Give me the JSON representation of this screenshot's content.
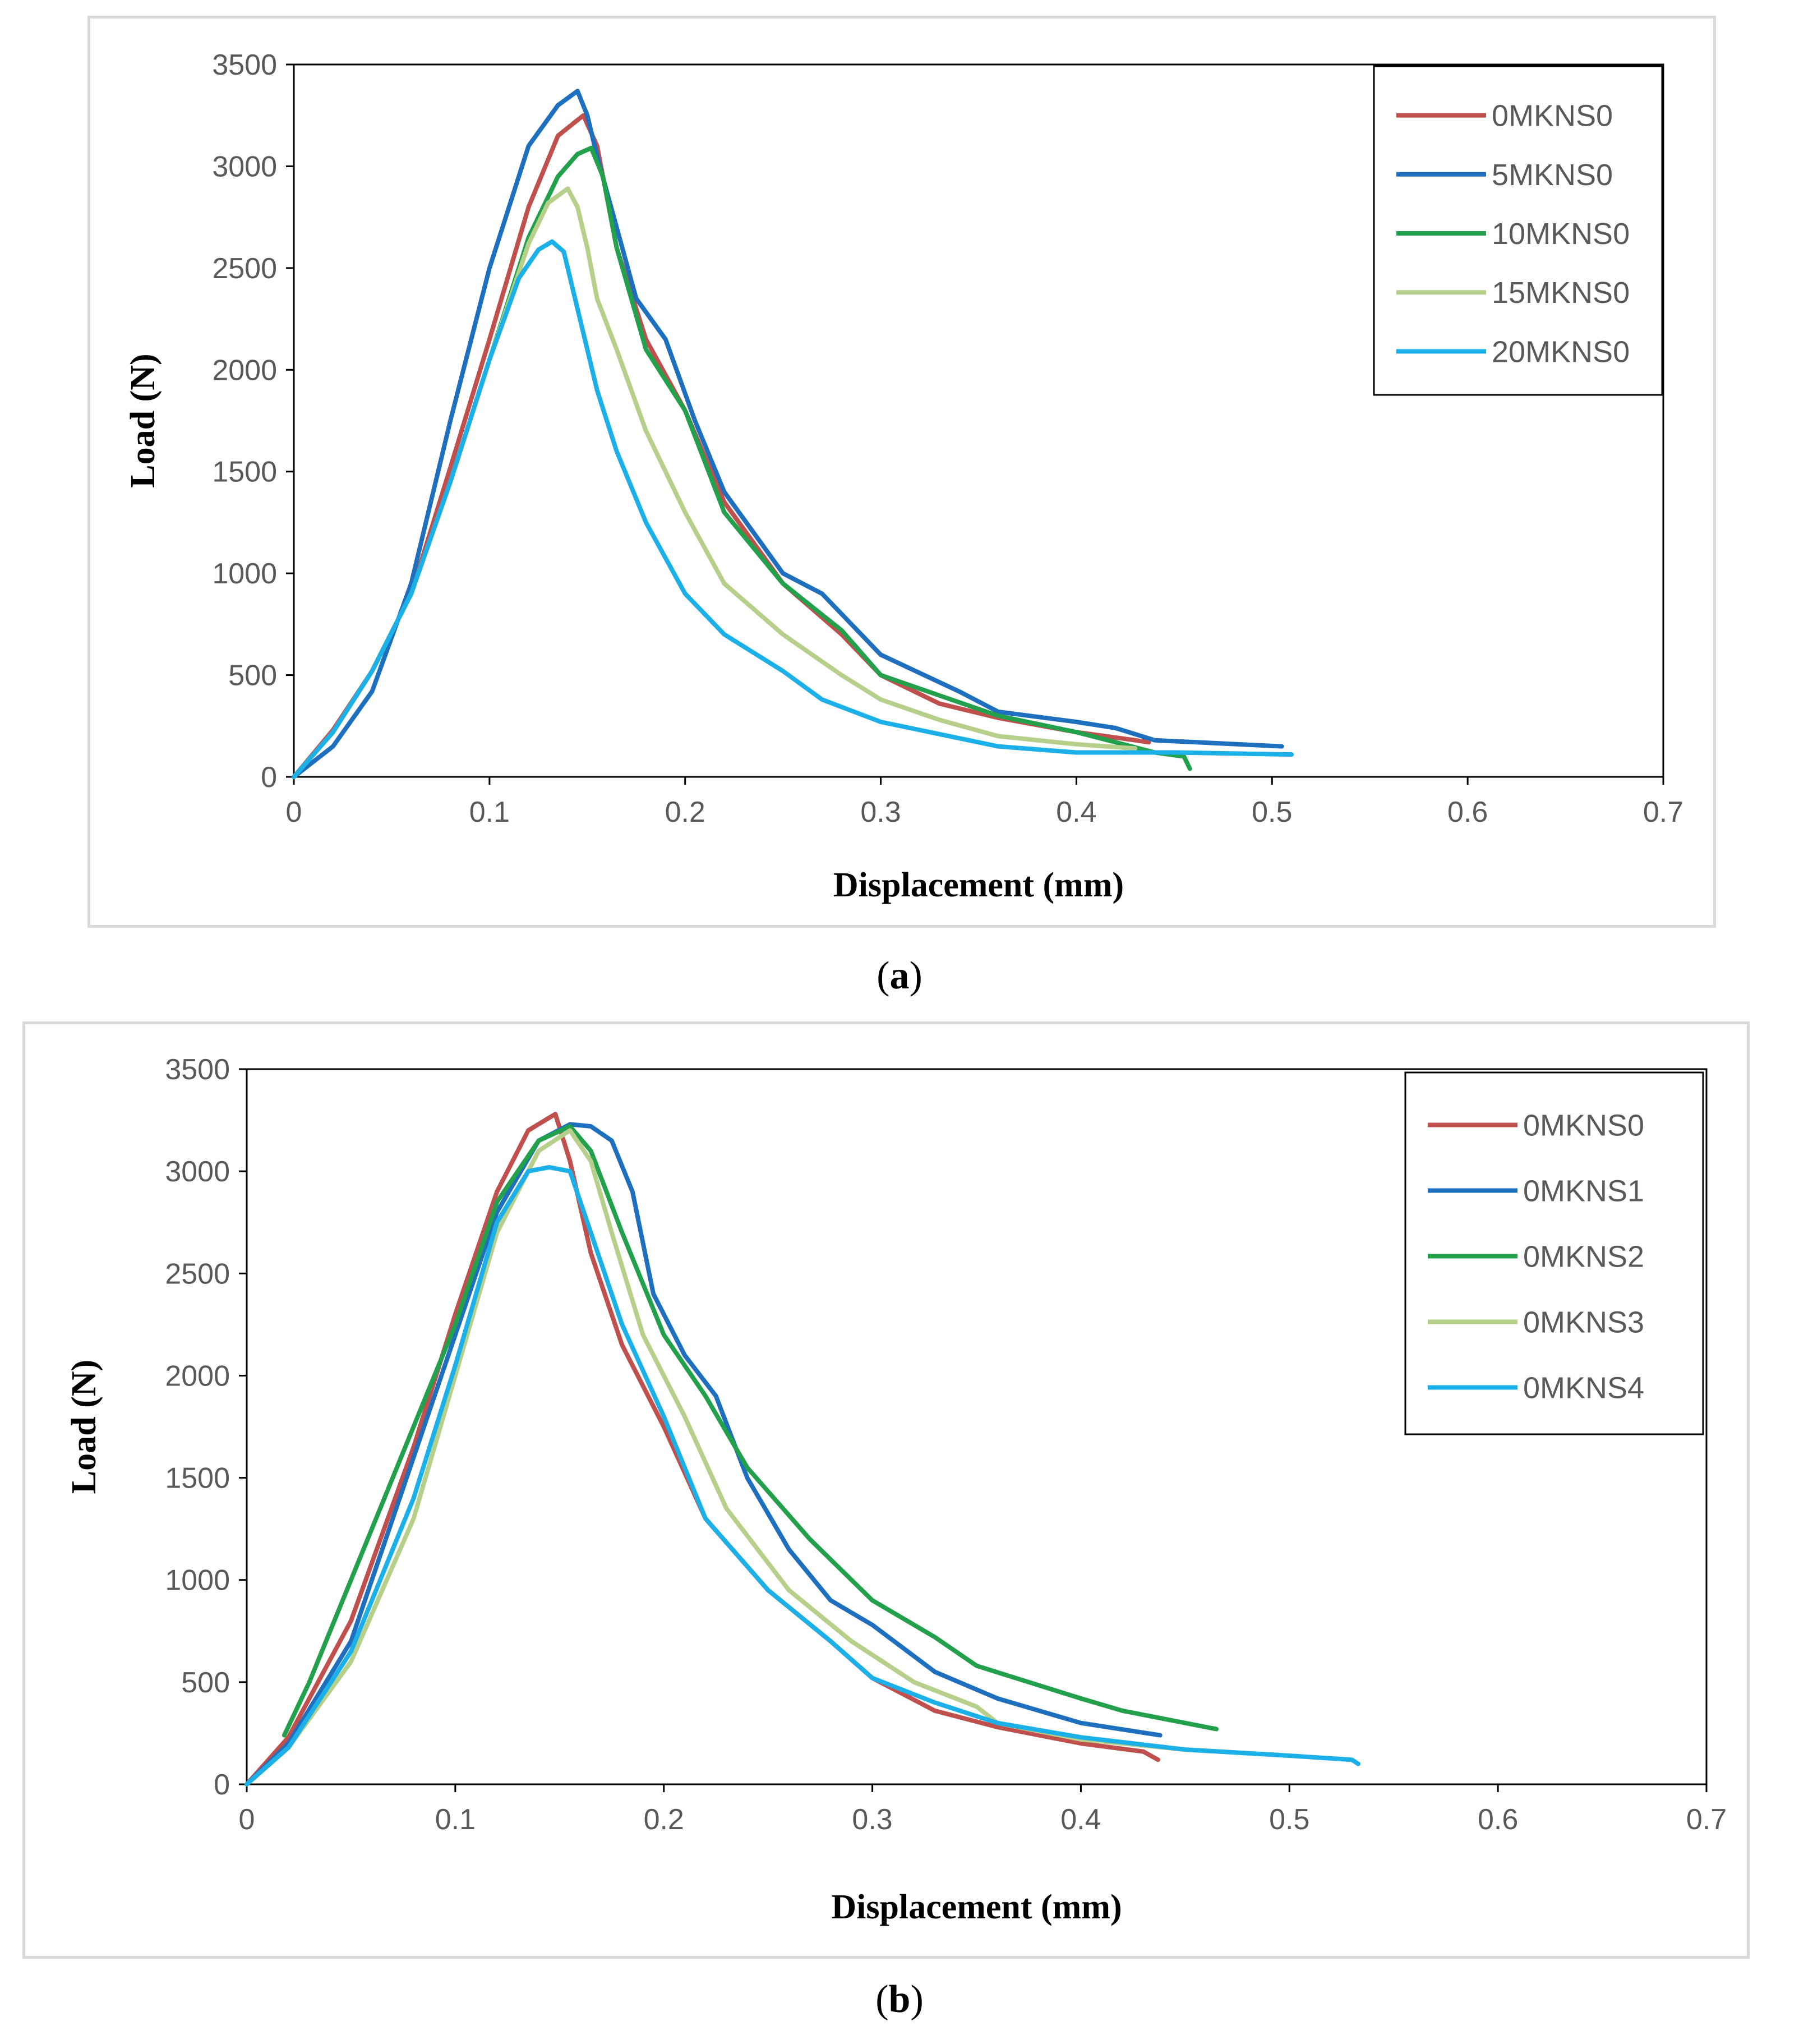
{
  "chart_data": [
    {
      "type": "line",
      "id": "a",
      "caption_letter": "a",
      "xlabel": "Displacement (mm)",
      "ylabel": "Load (N)",
      "xlim": [
        0,
        0.7
      ],
      "ylim": [
        0,
        3500
      ],
      "xticks": [
        "0",
        "0.1",
        "0.2",
        "0.3",
        "0.4",
        "0.5",
        "0.6",
        "0.7"
      ],
      "yticks": [
        "0",
        "500",
        "1000",
        "1500",
        "2000",
        "2500",
        "3000",
        "3500"
      ],
      "grid": false,
      "legend_position": "top-right",
      "series": [
        {
          "name": "0MKNS0",
          "color": "#c0504d",
          "x": [
            0,
            0.02,
            0.04,
            0.06,
            0.08,
            0.1,
            0.12,
            0.135,
            0.148,
            0.155,
            0.165,
            0.18,
            0.2,
            0.22,
            0.25,
            0.28,
            0.3,
            0.33,
            0.36,
            0.4,
            0.43,
            0.437
          ],
          "y": [
            0,
            230,
            520,
            900,
            1520,
            2150,
            2800,
            3150,
            3250,
            3100,
            2600,
            2150,
            1800,
            1350,
            950,
            700,
            500,
            360,
            290,
            220,
            180,
            170
          ]
        },
        {
          "name": "5MKNS0",
          "color": "#1f6fbf",
          "x": [
            0,
            0.02,
            0.04,
            0.06,
            0.08,
            0.1,
            0.12,
            0.135,
            0.145,
            0.15,
            0.155,
            0.165,
            0.175,
            0.19,
            0.205,
            0.22,
            0.25,
            0.27,
            0.3,
            0.34,
            0.36,
            0.4,
            0.42,
            0.44,
            0.505
          ],
          "y": [
            0,
            150,
            420,
            950,
            1750,
            2500,
            3100,
            3300,
            3370,
            3250,
            3050,
            2700,
            2350,
            2150,
            1750,
            1400,
            1000,
            900,
            600,
            420,
            320,
            270,
            240,
            180,
            150
          ]
        },
        {
          "name": "10MKNS0",
          "color": "#22a04b",
          "x": [
            0,
            0.02,
            0.04,
            0.06,
            0.08,
            0.1,
            0.12,
            0.135,
            0.145,
            0.152,
            0.158,
            0.165,
            0.18,
            0.2,
            0.22,
            0.25,
            0.28,
            0.3,
            0.33,
            0.36,
            0.4,
            0.42,
            0.44,
            0.455,
            0.458
          ],
          "y": [
            0,
            220,
            520,
            900,
            1450,
            2050,
            2650,
            2950,
            3060,
            3090,
            2950,
            2600,
            2100,
            1800,
            1300,
            950,
            720,
            500,
            400,
            300,
            220,
            170,
            120,
            100,
            40
          ]
        },
        {
          "name": "15MKNS0",
          "color": "#b6cf8a",
          "x": [
            0,
            0.02,
            0.04,
            0.06,
            0.08,
            0.1,
            0.12,
            0.13,
            0.14,
            0.145,
            0.15,
            0.155,
            0.165,
            0.18,
            0.2,
            0.22,
            0.25,
            0.28,
            0.3,
            0.33,
            0.36,
            0.4,
            0.43
          ],
          "y": [
            0,
            220,
            520,
            900,
            1450,
            2050,
            2620,
            2820,
            2890,
            2800,
            2600,
            2350,
            2100,
            1700,
            1300,
            950,
            700,
            500,
            380,
            280,
            200,
            160,
            140
          ]
        },
        {
          "name": "20MKNS0",
          "color": "#1bb0e8",
          "x": [
            0,
            0.02,
            0.04,
            0.06,
            0.08,
            0.1,
            0.115,
            0.125,
            0.132,
            0.138,
            0.145,
            0.155,
            0.165,
            0.18,
            0.2,
            0.22,
            0.25,
            0.27,
            0.3,
            0.33,
            0.36,
            0.4,
            0.45,
            0.51
          ],
          "y": [
            0,
            220,
            520,
            900,
            1450,
            2050,
            2450,
            2590,
            2630,
            2580,
            2300,
            1900,
            1600,
            1250,
            900,
            700,
            520,
            380,
            270,
            210,
            150,
            120,
            120,
            110
          ]
        }
      ]
    },
    {
      "type": "line",
      "id": "b",
      "caption_letter": "b",
      "xlabel": "Displacement (mm)",
      "ylabel": "Load (N)",
      "xlim": [
        0,
        0.7
      ],
      "ylim": [
        0,
        3500
      ],
      "xticks": [
        "0",
        "0.1",
        "0.2",
        "0.3",
        "0.4",
        "0.5",
        "0.6",
        "0.7"
      ],
      "yticks": [
        "0",
        "500",
        "1000",
        "1500",
        "2000",
        "2500",
        "3000",
        "3500"
      ],
      "grid": false,
      "legend_position": "top-right",
      "series": [
        {
          "name": "0MKNS0",
          "color": "#c0504d",
          "x": [
            0,
            0.02,
            0.05,
            0.08,
            0.1,
            0.12,
            0.135,
            0.148,
            0.155,
            0.165,
            0.18,
            0.2,
            0.22,
            0.25,
            0.28,
            0.3,
            0.33,
            0.36,
            0.4,
            0.43,
            0.437
          ],
          "y": [
            0,
            230,
            800,
            1650,
            2300,
            2900,
            3200,
            3280,
            3050,
            2600,
            2150,
            1750,
            1300,
            950,
            700,
            520,
            360,
            280,
            200,
            160,
            120
          ]
        },
        {
          "name": "0MKNS1",
          "color": "#1f6fbf",
          "x": [
            0,
            0.02,
            0.05,
            0.08,
            0.1,
            0.12,
            0.14,
            0.155,
            0.165,
            0.175,
            0.185,
            0.195,
            0.21,
            0.225,
            0.24,
            0.26,
            0.28,
            0.3,
            0.33,
            0.36,
            0.4,
            0.438
          ],
          "y": [
            0,
            200,
            700,
            1600,
            2200,
            2800,
            3150,
            3230,
            3220,
            3150,
            2900,
            2400,
            2100,
            1900,
            1500,
            1150,
            900,
            780,
            550,
            420,
            300,
            240
          ]
        },
        {
          "name": "0MKNS2",
          "color": "#22a04b",
          "x": [
            0.018,
            0.03,
            0.05,
            0.08,
            0.1,
            0.12,
            0.14,
            0.155,
            0.165,
            0.18,
            0.2,
            0.22,
            0.24,
            0.27,
            0.3,
            0.33,
            0.35,
            0.4,
            0.42,
            0.44,
            0.465
          ],
          "y": [
            240,
            500,
            1000,
            1750,
            2250,
            2850,
            3150,
            3220,
            3100,
            2700,
            2200,
            1900,
            1550,
            1200,
            900,
            720,
            580,
            420,
            360,
            320,
            270
          ]
        },
        {
          "name": "0MKNS3",
          "color": "#b6cf8a",
          "x": [
            0,
            0.02,
            0.05,
            0.08,
            0.1,
            0.12,
            0.14,
            0.155,
            0.165,
            0.175,
            0.19,
            0.21,
            0.23,
            0.26,
            0.29,
            0.32,
            0.35,
            0.36,
            0.4,
            0.45,
            0.5
          ],
          "y": [
            0,
            180,
            600,
            1300,
            2000,
            2700,
            3100,
            3200,
            3050,
            2700,
            2200,
            1800,
            1350,
            950,
            700,
            500,
            380,
            300,
            220,
            170,
            140
          ]
        },
        {
          "name": "0MKNS4",
          "color": "#1bb0e8",
          "x": [
            0,
            0.02,
            0.05,
            0.08,
            0.1,
            0.12,
            0.135,
            0.145,
            0.155,
            0.165,
            0.18,
            0.2,
            0.22,
            0.25,
            0.28,
            0.3,
            0.33,
            0.36,
            0.4,
            0.45,
            0.5,
            0.53,
            0.533
          ],
          "y": [
            0,
            180,
            650,
            1400,
            2050,
            2750,
            3000,
            3020,
            3000,
            2700,
            2250,
            1800,
            1300,
            950,
            700,
            520,
            400,
            300,
            230,
            170,
            140,
            120,
            100
          ]
        }
      ]
    }
  ]
}
